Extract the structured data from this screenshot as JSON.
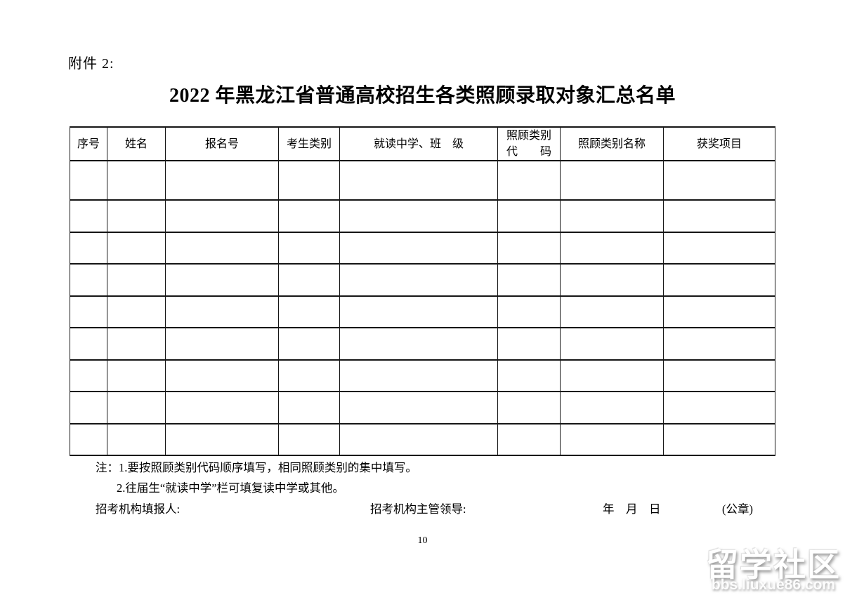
{
  "page": {
    "attachment_label": "附件 2:",
    "title": "2022 年黑龙江省普通高校招生各类照顾录取对象汇总名单",
    "page_number": "10"
  },
  "table": {
    "headers": [
      "序号",
      "姓名",
      "报名号",
      "考生类别",
      "就读中学、班　级",
      "照顾类别\n代　　码",
      "照顾类别名称",
      "获奖项目"
    ],
    "empty_rows": 9
  },
  "notes": {
    "line1": "注：1.要按照顾类别代码顺序填写，相同照顾类别的集中填写。",
    "line2": "2.往届生“就读中学”栏可填复读中学或其他。"
  },
  "signature": {
    "filler_label": "招考机构填报人:",
    "supervisor_label": "招考机构主管领导:",
    "date_label": "年　月　日",
    "seal_label": "(公章)"
  },
  "watermark": {
    "name": "留学社区",
    "url": "bbs.liuxue86.com",
    "text_color": "#ffffff",
    "shadow_color": "#8a8a8a"
  },
  "colors": {
    "background": "#ffffff",
    "text": "#000000",
    "table_border": "#151515"
  }
}
